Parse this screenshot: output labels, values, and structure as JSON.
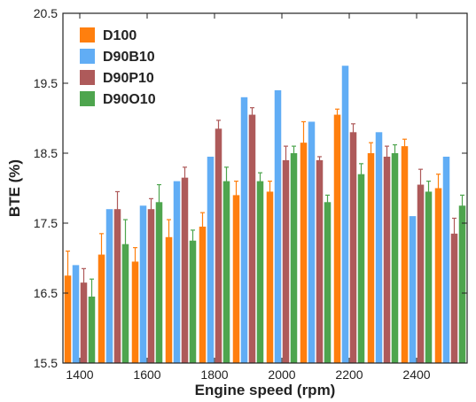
{
  "chart_data": {
    "type": "bar",
    "xlabel": "Engine speed (rpm)",
    "ylabel": "BTE (%)",
    "ylim": [
      15.5,
      20.5
    ],
    "yticks": [
      15.5,
      16.5,
      17.5,
      18.5,
      19.5,
      20.5
    ],
    "categories": [
      1400,
      1500,
      1600,
      1700,
      1800,
      1900,
      2000,
      2100,
      2200,
      2300,
      2400,
      2500
    ],
    "xtick_labels": [
      "1400",
      "1600",
      "1800",
      "2000",
      "2200",
      "2400"
    ],
    "xtick_values": [
      1400,
      1600,
      1800,
      2000,
      2200,
      2400
    ],
    "legend_position": "top-left",
    "grid": false,
    "error_bars": true,
    "series": [
      {
        "name": "D100",
        "color": "#ff7f0e",
        "values": [
          16.75,
          17.05,
          16.95,
          17.3,
          17.45,
          17.9,
          17.95,
          18.65,
          19.05,
          18.5,
          18.6,
          18.0
        ],
        "errors": [
          0.35,
          0.3,
          0.2,
          0.25,
          0.2,
          0.2,
          0.15,
          0.3,
          0.08,
          0.15,
          0.1,
          0.2
        ]
      },
      {
        "name": "D90B10",
        "color": "#61adf5",
        "values": [
          16.9,
          17.7,
          17.75,
          18.1,
          18.45,
          19.3,
          19.4,
          18.95,
          19.75,
          18.8,
          17.6,
          18.45
        ]
      },
      {
        "name": "D90P10",
        "color": "#ae5a5a",
        "values": [
          16.65,
          17.7,
          17.7,
          18.15,
          18.85,
          19.05,
          18.4,
          18.4,
          18.8,
          18.45,
          18.05,
          17.35
        ],
        "errors": [
          0.2,
          0.25,
          0.15,
          0.15,
          0.12,
          0.1,
          0.2,
          0.05,
          0.12,
          0.15,
          0.22,
          0.22
        ]
      },
      {
        "name": "D90O10",
        "color": "#4ea54e",
        "values": [
          16.45,
          17.2,
          17.8,
          17.25,
          18.1,
          18.1,
          18.5,
          17.8,
          18.2,
          18.5,
          17.95,
          17.75
        ],
        "errors": [
          0.25,
          0.35,
          0.25,
          0.15,
          0.2,
          0.12,
          0.1,
          0.1,
          0.15,
          0.12,
          0.15,
          0.15
        ]
      }
    ]
  }
}
